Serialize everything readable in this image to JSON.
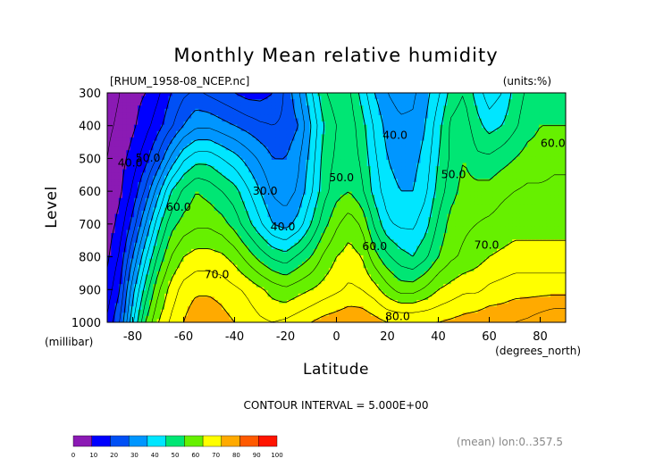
{
  "chart_data": {
    "type": "contour",
    "title": "Monthly Mean relative humidity",
    "file_label": "[RHUM_1958-08_NCEP.nc]",
    "units_label": "(units:%)",
    "xlabel": "Latitude",
    "x_unit_label": "(degrees_north)",
    "ylabel": "Level",
    "y_unit_label": "(millibar)",
    "x_ticks": [
      -80,
      -60,
      -40,
      -20,
      0,
      20,
      40,
      60,
      80
    ],
    "y_ticks": [
      300,
      400,
      500,
      600,
      700,
      800,
      900,
      1000
    ],
    "xlim": [
      -90,
      90
    ],
    "ylim": [
      1000,
      300
    ],
    "contour_interval_text": "CONTOUR INTERVAL = 5.000E+00",
    "mean_text": "(mean) lon:0..357.5",
    "contour_labels": [
      {
        "text": "40.0",
        "lat": -81,
        "lev": 525
      },
      {
        "text": "50.0",
        "lat": -74,
        "lev": 510
      },
      {
        "text": "60.0",
        "lat": -62,
        "lev": 660
      },
      {
        "text": "70.0",
        "lat": -47,
        "lev": 865
      },
      {
        "text": "30.0",
        "lat": -28,
        "lev": 610
      },
      {
        "text": "40.0",
        "lat": -21,
        "lev": 720
      },
      {
        "text": "50.0",
        "lat": 2,
        "lev": 570
      },
      {
        "text": "40.0",
        "lat": 23,
        "lev": 440
      },
      {
        "text": "60.0",
        "lat": 15,
        "lev": 780
      },
      {
        "text": "50.0",
        "lat": 46,
        "lev": 560
      },
      {
        "text": "70.0",
        "lat": 59,
        "lev": 775
      },
      {
        "text": "80.0",
        "lat": 24,
        "lev": 993
      },
      {
        "text": "60.0",
        "lat": 85,
        "lev": 465
      }
    ],
    "colorbar": {
      "ticks": [
        "0",
        "10",
        "20",
        "30",
        "40",
        "50",
        "60",
        "70",
        "80",
        "90",
        "100"
      ],
      "colors": [
        "#8b1ab4",
        "#0000ff",
        "#0050f5",
        "#0096ff",
        "#00e6ff",
        "#00e674",
        "#66f000",
        "#ffff00",
        "#ffaa00",
        "#ff5a00",
        "#ff1400"
      ]
    },
    "profiles": {
      "lat": [
        -90,
        -85,
        -80,
        -75,
        -70,
        -65,
        -60,
        -55,
        -50,
        -45,
        -40,
        -35,
        -30,
        -25,
        -20,
        -15,
        -10,
        -5,
        0,
        5,
        10,
        15,
        20,
        25,
        30,
        35,
        40,
        45,
        50,
        55,
        60,
        65,
        70,
        75,
        80,
        85,
        90
      ],
      "levels": [
        300,
        400,
        500,
        600,
        700,
        800,
        900,
        1000
      ],
      "values": [
        [
          3,
          5,
          8,
          10,
          14,
          20,
          24,
          26,
          24,
          22,
          20,
          18,
          18,
          20,
          26,
          34,
          44,
          54,
          58,
          56,
          48,
          40,
          35,
          33,
          34,
          38,
          44,
          52,
          55,
          48,
          42,
          45,
          52,
          56,
          58,
          56,
          56
        ],
        [
          4,
          6,
          9,
          13,
          18,
          24,
          30,
          34,
          34,
          32,
          30,
          28,
          26,
          25,
          26,
          30,
          40,
          50,
          55,
          58,
          52,
          44,
          38,
          36,
          36,
          40,
          48,
          56,
          58,
          52,
          48,
          50,
          54,
          58,
          60,
          60,
          60
        ],
        [
          5,
          8,
          12,
          18,
          26,
          36,
          44,
          48,
          48,
          45,
          42,
          38,
          34,
          30,
          30,
          34,
          42,
          52,
          56,
          58,
          54,
          46,
          40,
          38,
          38,
          42,
          50,
          56,
          60,
          56,
          56,
          58,
          60,
          62,
          62,
          64,
          64
        ],
        [
          6,
          9,
          16,
          26,
          38,
          50,
          56,
          60,
          58,
          55,
          52,
          46,
          40,
          34,
          32,
          36,
          44,
          53,
          58,
          60,
          56,
          48,
          42,
          40,
          40,
          44,
          52,
          58,
          62,
          62,
          62,
          64,
          65,
          66,
          66,
          66,
          66
        ],
        [
          7,
          12,
          22,
          35,
          48,
          58,
          62,
          64,
          64,
          62,
          58,
          52,
          46,
          40,
          38,
          42,
          50,
          58,
          64,
          68,
          64,
          54,
          46,
          44,
          44,
          48,
          56,
          62,
          64,
          65,
          66,
          67,
          68,
          68,
          68,
          68,
          68
        ],
        [
          9,
          16,
          30,
          44,
          56,
          65,
          70,
          72,
          72,
          71,
          68,
          63,
          58,
          54,
          52,
          56,
          60,
          66,
          70,
          72,
          70,
          62,
          56,
          52,
          50,
          54,
          60,
          64,
          66,
          68,
          70,
          71,
          72,
          72,
          72,
          72,
          72
        ],
        [
          12,
          20,
          38,
          52,
          64,
          72,
          77,
          79,
          79,
          78,
          76,
          74,
          71,
          68,
          66,
          68,
          70,
          72,
          74,
          76,
          75,
          72,
          67,
          63,
          63,
          66,
          70,
          72,
          74,
          74,
          76,
          77,
          78,
          78,
          78,
          78,
          78
        ],
        [
          16,
          25,
          44,
          60,
          70,
          76,
          80,
          84,
          84,
          82,
          80,
          78,
          76,
          75,
          76,
          78,
          80,
          82,
          83,
          84,
          84,
          82,
          80,
          80,
          80,
          80,
          80,
          81,
          82,
          83,
          84,
          84,
          85,
          86,
          88,
          90,
          90
        ]
      ]
    }
  }
}
